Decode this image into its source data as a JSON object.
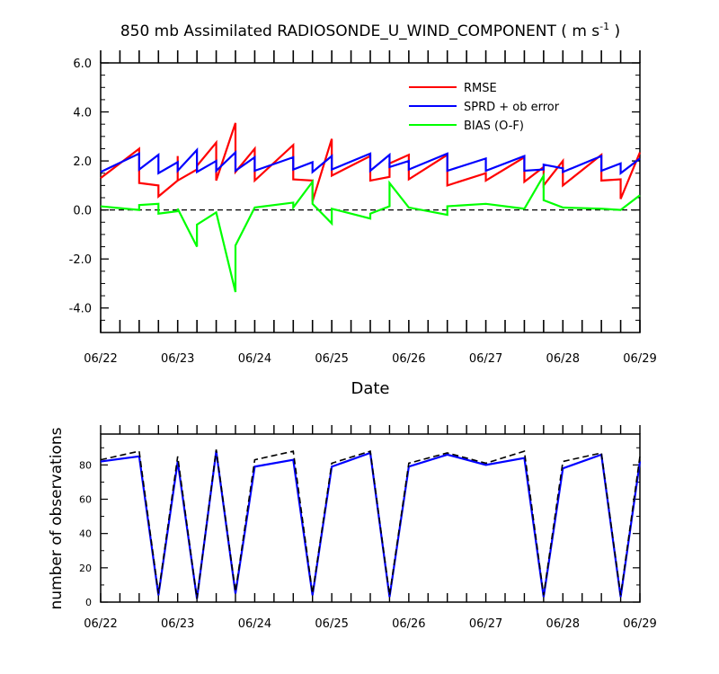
{
  "chart_data": [
    {
      "type": "line",
      "title": "850 mb Assimilated RADIOSONDE_U_WIND_COMPONENT ( m s",
      "title_superscript": "-1",
      "title_suffix": " )",
      "xlabel": "Date",
      "ylabel": "",
      "x_tick_labels": [
        "06/22",
        "06/23",
        "06/24",
        "06/25",
        "06/26",
        "06/27",
        "06/28",
        "06/29"
      ],
      "y_tick_labels": [
        "6.0",
        "4.0",
        "2.0",
        "0.0",
        "-2.0",
        "-4.0"
      ],
      "y_ticks": [
        6,
        4,
        2,
        0,
        -2,
        -4
      ],
      "xlim": [
        0,
        7
      ],
      "ylim": [
        -5.0,
        6.0
      ],
      "zero_line": "dashed",
      "legend_position": "top-right",
      "x": [
        0,
        0.5,
        0.5,
        0.75,
        0.75,
        1,
        1,
        1.25,
        1.25,
        1.5,
        1.5,
        1.75,
        1.75,
        2,
        2,
        2.5,
        2.5,
        2.75,
        2.75,
        3,
        3,
        3.5,
        3.5,
        3.75,
        3.75,
        4,
        4,
        4.5,
        4.5,
        5,
        5,
        5.5,
        5.5,
        5.75,
        5.75,
        6,
        6,
        6.5,
        6.5,
        6.75,
        6.75,
        7
      ],
      "series": [
        {
          "name": "RMSE",
          "color": "#ff0000",
          "points": [
            [
              0,
              1.3
            ],
            [
              0.5,
              2.5
            ],
            [
              0.5,
              1.1
            ],
            [
              0.75,
              1.0
            ],
            [
              0.75,
              0.55
            ],
            [
              1,
              1.2
            ],
            [
              1,
              2.2
            ],
            [
              1,
              1.2
            ],
            [
              1.25,
              1.65
            ],
            [
              1.25,
              1.8
            ],
            [
              1.5,
              2.75
            ],
            [
              1.5,
              1.2
            ],
            [
              1.75,
              3.55
            ],
            [
              1.75,
              1.55
            ],
            [
              2,
              2.5
            ],
            [
              2,
              1.2
            ],
            [
              2.5,
              2.65
            ],
            [
              2.5,
              1.25
            ],
            [
              2.75,
              1.2
            ],
            [
              2.75,
              0.35
            ],
            [
              3,
              2.9
            ],
            [
              3,
              1.4
            ],
            [
              3.5,
              2.2
            ],
            [
              3.5,
              1.2
            ],
            [
              3.75,
              1.35
            ],
            [
              3.75,
              1.9
            ],
            [
              4,
              2.25
            ],
            [
              4,
              1.25
            ],
            [
              4.5,
              2.25
            ],
            [
              4.5,
              1.0
            ],
            [
              5,
              1.5
            ],
            [
              5,
              1.2
            ],
            [
              5.5,
              2.15
            ],
            [
              5.5,
              1.15
            ],
            [
              5.75,
              1.75
            ],
            [
              5.75,
              1.0
            ],
            [
              6,
              2.0
            ],
            [
              6,
              1.0
            ],
            [
              6.5,
              2.25
            ],
            [
              6.5,
              1.2
            ],
            [
              6.75,
              1.25
            ],
            [
              6.75,
              0.45
            ],
            [
              7,
              2.35
            ]
          ]
        },
        {
          "name": "SPRD + ob error",
          "color": "#0000ff",
          "points": [
            [
              0,
              1.55
            ],
            [
              0.5,
              2.3
            ],
            [
              0.5,
              1.65
            ],
            [
              0.75,
              2.25
            ],
            [
              0.75,
              1.5
            ],
            [
              1,
              1.95
            ],
            [
              1,
              1.6
            ],
            [
              1.25,
              2.45
            ],
            [
              1.25,
              1.55
            ],
            [
              1.5,
              2.0
            ],
            [
              1.5,
              1.6
            ],
            [
              1.75,
              2.35
            ],
            [
              1.75,
              1.6
            ],
            [
              2,
              2.15
            ],
            [
              2,
              1.6
            ],
            [
              2.5,
              2.15
            ],
            [
              2.5,
              1.65
            ],
            [
              2.75,
              1.95
            ],
            [
              2.75,
              1.55
            ],
            [
              3,
              2.2
            ],
            [
              3,
              1.65
            ],
            [
              3.5,
              2.3
            ],
            [
              3.5,
              1.6
            ],
            [
              3.75,
              2.25
            ],
            [
              3.75,
              1.75
            ],
            [
              4,
              2.0
            ],
            [
              4,
              1.65
            ],
            [
              4.5,
              2.3
            ],
            [
              4.5,
              1.6
            ],
            [
              5,
              2.1
            ],
            [
              5,
              1.6
            ],
            [
              5.5,
              2.2
            ],
            [
              5.5,
              1.6
            ],
            [
              5.75,
              1.65
            ],
            [
              5.75,
              1.85
            ],
            [
              6,
              1.7
            ],
            [
              6,
              1.55
            ],
            [
              6.5,
              2.2
            ],
            [
              6.5,
              1.6
            ],
            [
              6.75,
              1.9
            ],
            [
              6.75,
              1.5
            ],
            [
              7,
              2.1
            ]
          ]
        },
        {
          "name": "BIAS (O-F)",
          "color": "#00ff00",
          "points": [
            [
              0,
              0.15
            ],
            [
              0.5,
              0.0
            ],
            [
              0.5,
              0.2
            ],
            [
              0.75,
              0.25
            ],
            [
              0.75,
              -0.15
            ],
            [
              1,
              -0.05
            ],
            [
              1,
              0.05
            ],
            [
              1.25,
              -1.5
            ],
            [
              1.25,
              -0.6
            ],
            [
              1.5,
              -0.1
            ],
            [
              1.75,
              -3.35
            ],
            [
              1.75,
              -1.45
            ],
            [
              2,
              0.1
            ],
            [
              2.5,
              0.3
            ],
            [
              2.5,
              0.1
            ],
            [
              2.75,
              1.15
            ],
            [
              2.75,
              0.25
            ],
            [
              3,
              -0.55
            ],
            [
              3,
              0.05
            ],
            [
              3.5,
              -0.35
            ],
            [
              3.5,
              -0.15
            ],
            [
              3.75,
              0.15
            ],
            [
              3.75,
              1.1
            ],
            [
              4,
              0.1
            ],
            [
              4.5,
              -0.2
            ],
            [
              4.5,
              0.15
            ],
            [
              5,
              0.25
            ],
            [
              5.5,
              0.05
            ],
            [
              5.75,
              1.4
            ],
            [
              5.75,
              0.4
            ],
            [
              6,
              0.1
            ],
            [
              6.5,
              0.05
            ],
            [
              6.75,
              0.0
            ],
            [
              7,
              0.6
            ]
          ]
        }
      ]
    },
    {
      "type": "line",
      "title": "",
      "xlabel": "",
      "ylabel": "number of observations",
      "x_tick_labels": [
        "06/22",
        "06/23",
        "06/24",
        "06/25",
        "06/26",
        "06/27",
        "06/28",
        "06/29"
      ],
      "y_tick_labels": [
        "0",
        "20",
        "40",
        "60",
        "80"
      ],
      "y_ticks": [
        0,
        20,
        40,
        60,
        80
      ],
      "xlim": [
        0,
        7
      ],
      "ylim": [
        0,
        98
      ],
      "series": [
        {
          "name": "",
          "color": "#0000ff",
          "style": "solid",
          "x": [
            0,
            0.5,
            0.75,
            1,
            1.25,
            1.5,
            1.75,
            2,
            2.5,
            2.75,
            3,
            3.5,
            3.75,
            4,
            4.5,
            5,
            5.5,
            5.75,
            6,
            6.5,
            6.75,
            7
          ],
          "values": [
            82,
            85,
            4,
            82,
            2,
            88,
            5,
            79,
            83,
            4,
            79,
            87,
            3,
            79,
            86,
            80,
            84,
            3,
            78,
            86,
            3,
            82
          ]
        },
        {
          "name": "",
          "color": "#000000",
          "style": "dashed",
          "x": [
            0,
            0.5,
            0.75,
            1,
            1.25,
            1.5,
            1.75,
            2,
            2.5,
            2.75,
            3,
            3.5,
            3.75,
            4,
            4.5,
            5,
            5.5,
            5.75,
            6,
            6.5,
            6.75,
            7
          ],
          "values": [
            83,
            88,
            5,
            85,
            2,
            89,
            6,
            83,
            88,
            5,
            81,
            88,
            4,
            81,
            87,
            81,
            88,
            4,
            82,
            87,
            4,
            85
          ]
        }
      ]
    }
  ]
}
